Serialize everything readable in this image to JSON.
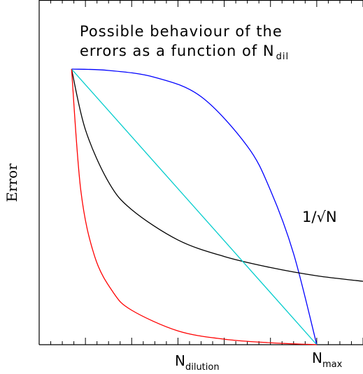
{
  "chart_data": {
    "type": "line",
    "title_line1": "Possible behaviour of the",
    "title_line2": "errors as a function of N",
    "title_sub": "dil",
    "ylabel": "Error",
    "xlabel": "",
    "xlim": [
      0,
      7.0
    ],
    "ylim": [
      0,
      1.0
    ],
    "x_start": 0.7,
    "x_max": 6.0,
    "y_start": 1.0,
    "x_ticks": {
      "dilution": {
        "x": 3.5,
        "base": "N",
        "sub": "dilution"
      },
      "max": {
        "x": 6.0,
        "base": "N",
        "sub": "max"
      }
    },
    "annotation": {
      "text_left": "1/",
      "radical": "√",
      "text_right": "N",
      "x": 5.7,
      "y": 0.48
    },
    "series": [
      {
        "color": "#0000ff",
        "x": [
          0.7,
          1.5,
          2.5,
          3.5,
          4.5,
          5.0,
          5.5,
          6.0
        ],
        "y": [
          1.0,
          0.995,
          0.97,
          0.9,
          0.72,
          0.56,
          0.33,
          0.0
        ]
      },
      {
        "color": "#000000",
        "x": [
          0.7,
          1.0,
          1.5,
          2.0,
          3.0,
          4.0,
          5.0,
          6.0,
          7.0
        ],
        "y": [
          1.0,
          0.78,
          0.59,
          0.49,
          0.38,
          0.32,
          0.28,
          0.25,
          0.23
        ]
      },
      {
        "color": "#00cccc",
        "x": [
          0.7,
          6.0
        ],
        "y": [
          1.0,
          0.0
        ]
      },
      {
        "color": "#ff0000",
        "x": [
          0.7,
          0.9,
          1.2,
          1.6,
          2.0,
          3.0,
          4.0,
          5.0,
          6.0
        ],
        "y": [
          1.0,
          0.56,
          0.32,
          0.19,
          0.125,
          0.05,
          0.02,
          0.007,
          0.0
        ]
      }
    ]
  }
}
